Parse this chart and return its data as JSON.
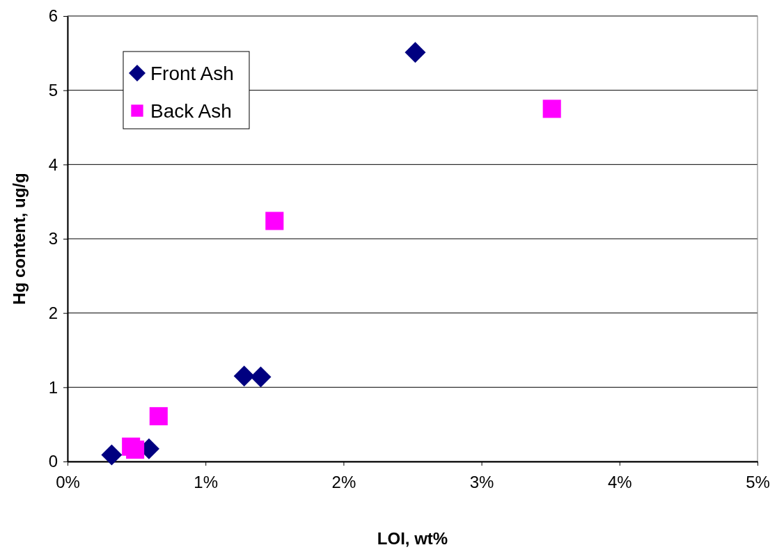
{
  "chart_data": {
    "type": "scatter",
    "xlabel": "LOI, wt%",
    "ylabel": "Hg content, ug/g",
    "xlim": [
      0,
      5
    ],
    "xticks": [
      {
        "value": 0,
        "label": "0%"
      },
      {
        "value": 1,
        "label": "1%"
      },
      {
        "value": 2,
        "label": "2%"
      },
      {
        "value": 3,
        "label": "3%"
      },
      {
        "value": 4,
        "label": "4%"
      },
      {
        "value": 5,
        "label": "5%"
      }
    ],
    "ylim": [
      0,
      6
    ],
    "yticks": [
      0,
      1,
      2,
      3,
      4,
      5,
      6
    ],
    "grid": "y",
    "legend": "top left",
    "series": [
      {
        "name": "Front Ash",
        "color": "#000080",
        "marker": "diamond",
        "x": [
          0.32,
          0.59,
          1.28,
          1.4,
          2.52
        ],
        "values": [
          0.09,
          0.17,
          1.15,
          1.14,
          5.51
        ]
      },
      {
        "name": "Back Ash",
        "color": "#ff00ff",
        "marker": "square",
        "x": [
          0.46,
          0.49,
          0.66,
          1.5,
          3.51
        ],
        "values": [
          0.2,
          0.16,
          0.61,
          3.24,
          4.75
        ]
      }
    ]
  }
}
